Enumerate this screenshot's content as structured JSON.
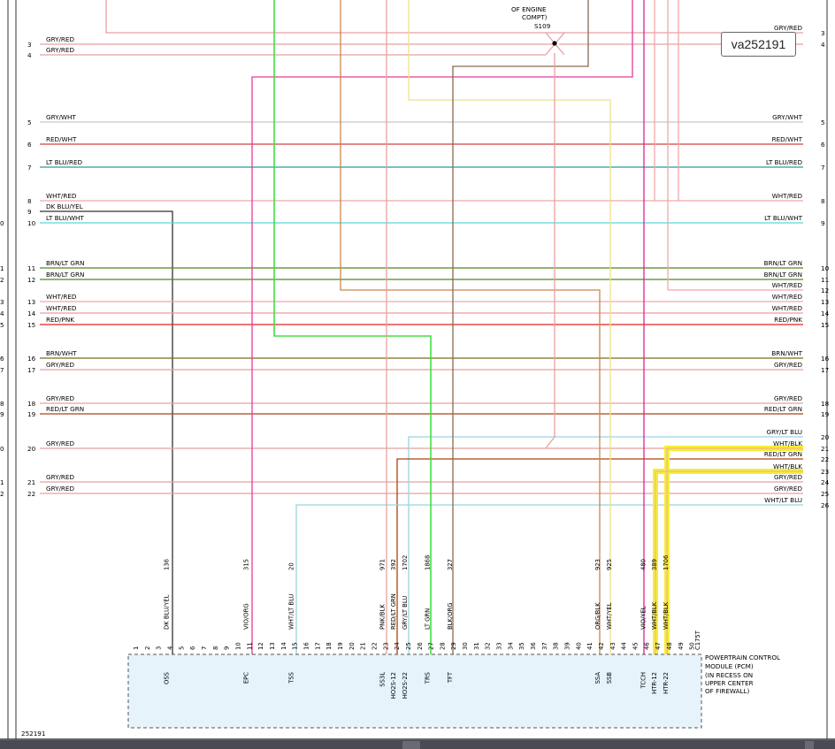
{
  "badge_id": "va252191",
  "figure_id": "252191",
  "splice": {
    "lines": [
      "OF ENGINE",
      "COMPT)",
      "S109"
    ]
  },
  "pcm_label": [
    "POWERTRAIN CONTROL",
    "MODULE (PCM)",
    "(IN RECESS ON",
    "UPPER CENTER",
    "OF FIREWALL)"
  ],
  "connector_id": "C175T",
  "colors": {
    "GRY_RED": "#e8a0a0",
    "GRY_WHT": "#c8c8c8",
    "RED_WHT": "#d44040",
    "LT_BLU_RED": "#2a9a9a",
    "WHT_RED": "#f0a8a8",
    "DK_BLU_YEL": "#333333",
    "LT_BLU_WHT": "#5ad8d8",
    "BRN_LT_GRN": "#4a8a1a",
    "WHT_RED2": "#f29a9a",
    "RED_PNK": "#e02020",
    "BRN_WHT": "#7a6a20",
    "RED_LT_GRN": "#b04010",
    "PINK": "#e83a9a",
    "GREEN": "#44dd44",
    "ORANGE": "#c88848",
    "YELLOW_LT": "#eee288",
    "BROWN": "#8a6a50",
    "MAGENTA": "#e0209a",
    "HILITE": "#f5ef30",
    "PCM_FILL": "#e6f3fb"
  },
  "left_rows": [
    {
      "n": "3",
      "label": "GRY/RED"
    },
    {
      "n": "4",
      "label": "GRY/RED"
    },
    {
      "n": "5",
      "label": "GRY/WHT"
    },
    {
      "n": "6",
      "label": "RED/WHT"
    },
    {
      "n": "7",
      "label": "LT BLU/RED"
    },
    {
      "n": "8",
      "label": "WHT/RED"
    },
    {
      "n": "9",
      "label": "DK BLU/YEL"
    },
    {
      "n": "10",
      "label": "LT BLU/WHT"
    },
    {
      "n": "11",
      "label": "BRN/LT GRN"
    },
    {
      "n": "12",
      "label": "BRN/LT GRN"
    },
    {
      "n": "13",
      "label": "WHT/RED"
    },
    {
      "n": "14",
      "label": "WHT/RED"
    },
    {
      "n": "15",
      "label": "RED/PNK"
    },
    {
      "n": "16",
      "label": "BRN/WHT"
    },
    {
      "n": "17",
      "label": "GRY/RED"
    },
    {
      "n": "18",
      "label": "GRY/RED"
    },
    {
      "n": "19",
      "label": "RED/LT GRN"
    },
    {
      "n": "20",
      "label": "GRY/RED"
    },
    {
      "n": "21",
      "label": "GRY/RED"
    },
    {
      "n": "22",
      "label": "GRY/RED"
    }
  ],
  "right_rows": [
    {
      "n": "3",
      "label": "GRY/RED"
    },
    {
      "n": "4",
      "label": ""
    },
    {
      "n": "5",
      "label": "GRY/WHT"
    },
    {
      "n": "6",
      "label": "RED/WHT"
    },
    {
      "n": "7",
      "label": "LT BLU/RED"
    },
    {
      "n": "8",
      "label": "WHT/RED"
    },
    {
      "n": "9",
      "label": "LT BLU/WHT"
    },
    {
      "n": "10",
      "label": "BRN/LT GRN"
    },
    {
      "n": "11",
      "label": "BRN/LT GRN"
    },
    {
      "n": "12",
      "label": "WHT/RED"
    },
    {
      "n": "13",
      "label": "WHT/RED"
    },
    {
      "n": "14",
      "label": "WHT/RED"
    },
    {
      "n": "15",
      "label": "RED/PNK"
    },
    {
      "n": "16",
      "label": "BRN/WHT"
    },
    {
      "n": "17",
      "label": "GRY/RED"
    },
    {
      "n": "18",
      "label": "GRY/RED"
    },
    {
      "n": "19",
      "label": "RED/LT GRN"
    },
    {
      "n": "20",
      "label": "GRY/LT BLU"
    },
    {
      "n": "21",
      "label": "WHT/BLK"
    },
    {
      "n": "22",
      "label": "RED/LT GRN"
    },
    {
      "n": "23",
      "label": "WHT/BLK"
    },
    {
      "n": "24",
      "label": "GRY/RED"
    },
    {
      "n": "25",
      "label": "GRY/RED"
    },
    {
      "n": "26",
      "label": "WHT/LT BLU"
    }
  ],
  "edge_digits": [
    "0",
    "1",
    "2",
    "3",
    "4",
    "5",
    "6",
    "7",
    "8",
    "9",
    "0",
    "1",
    "2"
  ],
  "pins": [
    "1",
    "2",
    "3",
    "4",
    "5",
    "6",
    "7",
    "8",
    "9",
    "10",
    "11",
    "12",
    "13",
    "14",
    "15",
    "16",
    "17",
    "18",
    "19",
    "20",
    "21",
    "22",
    "23",
    "24",
    "25",
    "26",
    "27",
    "28",
    "29",
    "30",
    "31",
    "32",
    "33",
    "34",
    "35",
    "36",
    "37",
    "38",
    "39",
    "40",
    "41",
    "42",
    "43",
    "44",
    "45",
    "46",
    "47",
    "48",
    "49",
    "50"
  ],
  "pcm_wires": [
    {
      "circuit": "136",
      "color": "DK BLU/YEL",
      "func": "OSS"
    },
    {
      "circuit": "315",
      "color": "VIO/ORG",
      "func": "EPC"
    },
    {
      "circuit": "20",
      "color": "WHT/LT BLU",
      "func": "TSS"
    },
    {
      "circuit": "971",
      "color": "PNK/BLK",
      "func": "SS3L"
    },
    {
      "circuit": "392",
      "color": "RED/LT GRN",
      "func": "HO2S-12"
    },
    {
      "circuit": "1702",
      "color": "GRY/LT BLU",
      "func": "HO2S-22"
    },
    {
      "circuit": "1868",
      "color": "LT GRN",
      "func": "TRS"
    },
    {
      "circuit": "327",
      "color": "BLK/ORG",
      "func": "TFT"
    },
    {
      "circuit": "923",
      "color": "ORG/BLK",
      "func": "SSA"
    },
    {
      "circuit": "925",
      "color": "WHT/YEL",
      "func": "SSB"
    },
    {
      "circuit": "480",
      "color": "VIO/YEL",
      "func": "TCCH"
    },
    {
      "circuit": "389",
      "color": "WHT/BLK",
      "func": "HTR-12"
    },
    {
      "circuit": "1706",
      "color": "WHT/BLK",
      "func": "HTR-22"
    }
  ]
}
